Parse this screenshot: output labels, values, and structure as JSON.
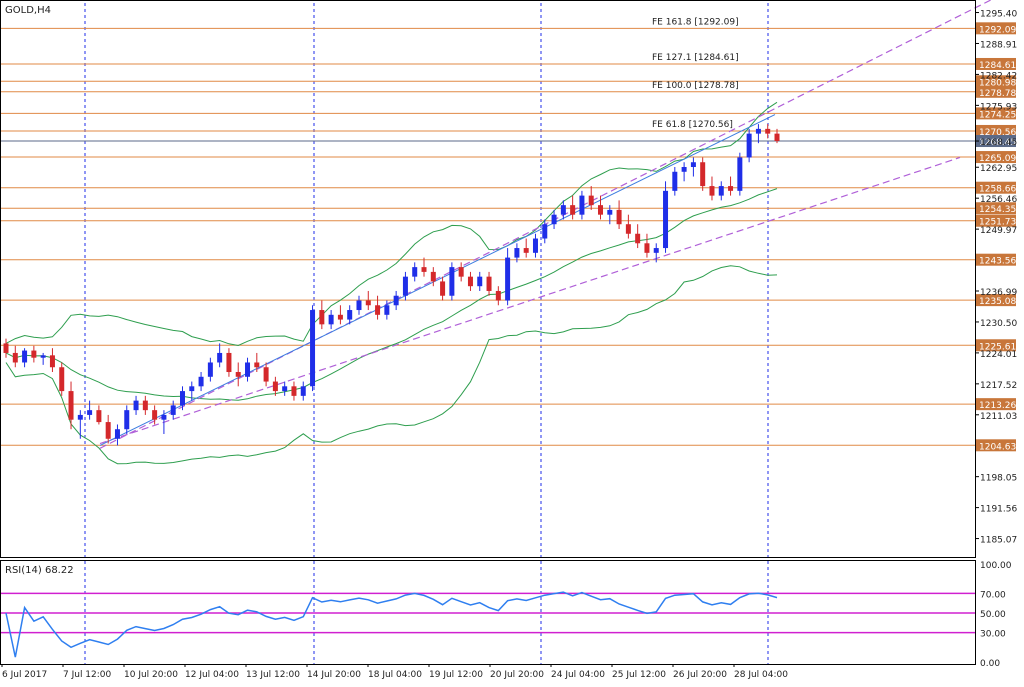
{
  "window": {
    "symbol_label": "GOLD,H4"
  },
  "indicator": {
    "label": "RSI(14) 68.22"
  },
  "colors": {
    "bull": "#1f2ee8",
    "bear": "#d4282b",
    "level": "#e08a46",
    "level_fill": "#c8763a",
    "band": "#2e9e4e",
    "channel": "#b060d8",
    "rsi": "#2f7ff0",
    "rsi_level": "#d020d0",
    "grid_vline": "#1f2ee8",
    "price_marker": "#5b6a88",
    "fib": "#222222",
    "arrow": "#9a9a9a"
  },
  "price_axis": {
    "ticks": [
      "1295.40",
      "1288.91",
      "1282.42",
      "1275.93",
      "1268.45",
      "1262.95",
      "1256.46",
      "1249.97",
      "1236.99",
      "1230.50",
      "1224.01",
      "1217.52",
      "1211.03",
      "1198.05",
      "1191.56",
      "1185.07"
    ],
    "range": [
      1181.2,
      1297.4
    ]
  },
  "rsi_axis": {
    "ticks": [
      "100.00",
      "70.00",
      "50.00",
      "30.00",
      "0.00"
    ],
    "levels": [
      70,
      50,
      30
    ]
  },
  "time_axis": {
    "labels": [
      "6 Jul 2017",
      "7 Jul 12:00",
      "10 Jul 20:00",
      "12 Jul 04:00",
      "13 Jul 12:00",
      "14 Jul 20:00",
      "18 Jul 04:00",
      "19 Jul 12:00",
      "20 Jul 20:00",
      "24 Jul 04:00",
      "25 Jul 12:00",
      "26 Jul 20:00",
      "28 Jul 04:00"
    ]
  },
  "current_price": "1268.45",
  "chart_data": {
    "type": "candlestick",
    "title": "GOLD,H4",
    "levels": [
      "1292.09",
      "1284.61",
      "1280.98",
      "1278.78",
      "1274.25",
      "1270.56",
      "1265.09",
      "1258.66",
      "1254.35",
      "1251.73",
      "1243.56",
      "1235.08",
      "1225.61",
      "1213.26",
      "1204.63"
    ],
    "fibonacci": [
      {
        "label": "FE 161.8 [1292.09]",
        "price": 1292.09
      },
      {
        "label": "FE 127.1 [1284.61]",
        "price": 1284.61
      },
      {
        "label": "FE 100.0 [1278.78]",
        "price": 1278.78
      },
      {
        "label": "FE 61.8 [1270.56]",
        "price": 1270.56
      }
    ],
    "candles": [
      [
        1226.0,
        1227.0,
        1223.0,
        1224.0
      ],
      [
        1224.0,
        1225.5,
        1221.0,
        1222.0
      ],
      [
        1222.0,
        1225.0,
        1221.0,
        1224.5
      ],
      [
        1224.5,
        1225.5,
        1222.0,
        1223.0
      ],
      [
        1223.0,
        1224.0,
        1221.5,
        1223.5
      ],
      [
        1223.5,
        1225.0,
        1220.0,
        1221.0
      ],
      [
        1221.0,
        1222.0,
        1215.0,
        1216.0
      ],
      [
        1216.0,
        1218.0,
        1208.0,
        1210.0
      ],
      [
        1210.0,
        1212.0,
        1206.0,
        1211.0
      ],
      [
        1211.0,
        1214.0,
        1210.0,
        1212.0
      ],
      [
        1212.0,
        1213.0,
        1209.0,
        1209.5
      ],
      [
        1209.5,
        1211.0,
        1205.0,
        1206.0
      ],
      [
        1206.0,
        1209.0,
        1204.6,
        1208.0
      ],
      [
        1208.0,
        1213.0,
        1207.0,
        1212.0
      ],
      [
        1212.0,
        1215.0,
        1211.0,
        1214.0
      ],
      [
        1214.0,
        1215.0,
        1211.0,
        1212.0
      ],
      [
        1212.0,
        1213.0,
        1209.0,
        1210.0
      ],
      [
        1210.0,
        1212.0,
        1207.0,
        1211.0
      ],
      [
        1211.0,
        1214.0,
        1210.0,
        1213.0
      ],
      [
        1213.0,
        1217.0,
        1212.0,
        1216.0
      ],
      [
        1216.0,
        1218.0,
        1214.0,
        1217.0
      ],
      [
        1217.0,
        1220.0,
        1216.0,
        1219.0
      ],
      [
        1219.0,
        1223.0,
        1218.0,
        1222.0
      ],
      [
        1222.0,
        1226.0,
        1221.0,
        1224.0
      ],
      [
        1224.0,
        1225.0,
        1219.0,
        1220.0
      ],
      [
        1220.0,
        1222.0,
        1217.0,
        1219.0
      ],
      [
        1219.0,
        1223.0,
        1218.0,
        1222.0
      ],
      [
        1222.0,
        1224.0,
        1220.0,
        1221.0
      ],
      [
        1221.0,
        1222.0,
        1217.0,
        1218.0
      ],
      [
        1218.0,
        1219.0,
        1215.0,
        1216.0
      ],
      [
        1216.0,
        1218.0,
        1215.0,
        1217.0
      ],
      [
        1217.0,
        1218.0,
        1214.0,
        1215.0
      ],
      [
        1215.0,
        1218.0,
        1214.0,
        1217.0
      ],
      [
        1217.0,
        1234.0,
        1216.0,
        1233.0
      ],
      [
        1233.0,
        1235.0,
        1229.0,
        1230.0
      ],
      [
        1230.0,
        1233.0,
        1229.0,
        1232.0
      ],
      [
        1232.0,
        1234.0,
        1230.0,
        1231.0
      ],
      [
        1231.0,
        1234.0,
        1230.0,
        1233.0
      ],
      [
        1233.0,
        1236.0,
        1232.0,
        1235.0
      ],
      [
        1235.0,
        1237.0,
        1233.0,
        1234.0
      ],
      [
        1234.0,
        1236.0,
        1231.0,
        1232.0
      ],
      [
        1232.0,
        1235.0,
        1231.0,
        1234.0
      ],
      [
        1234.0,
        1237.0,
        1233.0,
        1236.0
      ],
      [
        1236.0,
        1241.0,
        1235.0,
        1240.0
      ],
      [
        1240.0,
        1243.0,
        1239.0,
        1242.0
      ],
      [
        1242.0,
        1244.0,
        1240.0,
        1241.0
      ],
      [
        1241.0,
        1242.0,
        1238.0,
        1239.0
      ],
      [
        1239.0,
        1240.0,
        1235.0,
        1236.0
      ],
      [
        1236.0,
        1243.0,
        1235.0,
        1242.0
      ],
      [
        1242.0,
        1243.0,
        1239.0,
        1240.0
      ],
      [
        1240.0,
        1241.0,
        1237.0,
        1238.0
      ],
      [
        1238.0,
        1241.0,
        1237.0,
        1240.0
      ],
      [
        1240.0,
        1241.0,
        1236.0,
        1237.0
      ],
      [
        1237.0,
        1238.0,
        1234.0,
        1235.0
      ],
      [
        1235.0,
        1246.0,
        1234.0,
        1244.0
      ],
      [
        1244.0,
        1247.0,
        1243.0,
        1246.0
      ],
      [
        1246.0,
        1248.0,
        1244.0,
        1245.0
      ],
      [
        1245.0,
        1249.0,
        1244.0,
        1248.0
      ],
      [
        1248.0,
        1252.0,
        1247.0,
        1251.0
      ],
      [
        1251.0,
        1254.0,
        1250.0,
        1253.0
      ],
      [
        1253.0,
        1256.0,
        1252.0,
        1255.0
      ],
      [
        1255.0,
        1257.0,
        1252.0,
        1253.0
      ],
      [
        1253.0,
        1258.0,
        1252.0,
        1257.0
      ],
      [
        1257.0,
        1259.0,
        1254.0,
        1255.0
      ],
      [
        1255.0,
        1257.0,
        1252.0,
        1253.0
      ],
      [
        1253.0,
        1255.0,
        1251.0,
        1254.0
      ],
      [
        1254.0,
        1256.0,
        1250.0,
        1251.0
      ],
      [
        1251.0,
        1253.0,
        1248.0,
        1249.0
      ],
      [
        1249.0,
        1251.0,
        1246.0,
        1247.0
      ],
      [
        1247.0,
        1249.0,
        1244.0,
        1245.0
      ],
      [
        1245.0,
        1247.0,
        1243.0,
        1246.0
      ],
      [
        1246.0,
        1260.0,
        1245.0,
        1258.0
      ],
      [
        1258.0,
        1263.0,
        1257.0,
        1262.0
      ],
      [
        1262.0,
        1264.0,
        1260.0,
        1263.0
      ],
      [
        1263.0,
        1265.0,
        1261.0,
        1264.0
      ],
      [
        1264.0,
        1265.0,
        1258.0,
        1259.0
      ],
      [
        1259.0,
        1261.0,
        1256.0,
        1257.0
      ],
      [
        1257.0,
        1260.0,
        1256.0,
        1259.0
      ],
      [
        1259.0,
        1261.0,
        1257.0,
        1258.0
      ],
      [
        1258.0,
        1266.0,
        1257.0,
        1265.0
      ],
      [
        1265.0,
        1271.0,
        1264.0,
        1270.0
      ],
      [
        1270.0,
        1272.0,
        1268.0,
        1271.0
      ],
      [
        1271.0,
        1272.0,
        1269.0,
        1270.0
      ],
      [
        1270.0,
        1271.0,
        1268.0,
        1268.45
      ]
    ]
  }
}
